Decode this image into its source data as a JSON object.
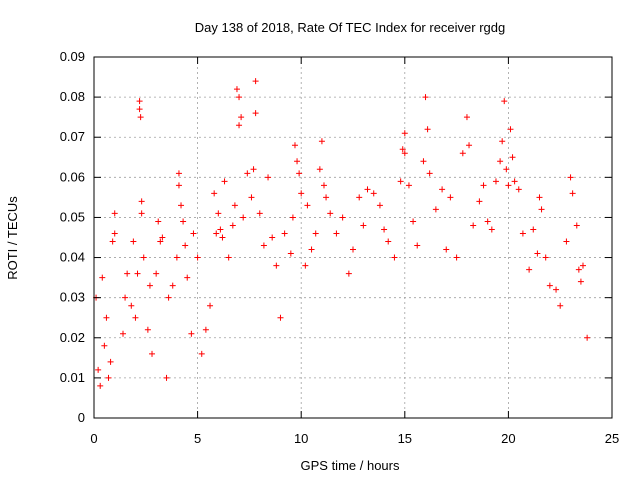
{
  "chart_data": {
    "type": "scatter",
    "title": "Day 138 of 2018, Rate Of TEC Index for receiver rgdg",
    "xlabel": "GPS time / hours",
    "ylabel": "ROTI / TECUs",
    "xlim": [
      0,
      25
    ],
    "ylim": [
      0,
      0.09
    ],
    "xticks": [
      "0",
      "5",
      "10",
      "15",
      "20",
      "25"
    ],
    "yticks": [
      "0",
      "0.01",
      "0.02",
      "0.03",
      "0.04",
      "0.05",
      "0.06",
      "0.07",
      "0.08",
      "0.09"
    ],
    "grid": true,
    "marker": "+",
    "series": [
      {
        "name": "ROTI",
        "color": "#ff0000",
        "points": [
          [
            0.1,
            0.03
          ],
          [
            0.2,
            0.012
          ],
          [
            0.3,
            0.008
          ],
          [
            0.4,
            0.035
          ],
          [
            0.5,
            0.018
          ],
          [
            0.6,
            0.025
          ],
          [
            0.7,
            0.01
          ],
          [
            0.8,
            0.014
          ],
          [
            0.9,
            0.044
          ],
          [
            1.0,
            0.046
          ],
          [
            1.0,
            0.051
          ],
          [
            1.4,
            0.021
          ],
          [
            1.5,
            0.03
          ],
          [
            1.6,
            0.036
          ],
          [
            1.8,
            0.028
          ],
          [
            1.9,
            0.044
          ],
          [
            2.0,
            0.025
          ],
          [
            2.1,
            0.036
          ],
          [
            2.2,
            0.079
          ],
          [
            2.2,
            0.077
          ],
          [
            2.25,
            0.075
          ],
          [
            2.3,
            0.054
          ],
          [
            2.3,
            0.051
          ],
          [
            2.4,
            0.04
          ],
          [
            2.6,
            0.022
          ],
          [
            2.7,
            0.033
          ],
          [
            2.8,
            0.016
          ],
          [
            3.0,
            0.036
          ],
          [
            3.1,
            0.049
          ],
          [
            3.2,
            0.044
          ],
          [
            3.3,
            0.045
          ],
          [
            3.5,
            0.01
          ],
          [
            3.6,
            0.03
          ],
          [
            3.8,
            0.033
          ],
          [
            4.0,
            0.04
          ],
          [
            4.1,
            0.061
          ],
          [
            4.1,
            0.058
          ],
          [
            4.2,
            0.053
          ],
          [
            4.3,
            0.049
          ],
          [
            4.4,
            0.043
          ],
          [
            4.5,
            0.035
          ],
          [
            4.7,
            0.021
          ],
          [
            4.8,
            0.046
          ],
          [
            5.0,
            0.04
          ],
          [
            5.2,
            0.016
          ],
          [
            5.4,
            0.022
          ],
          [
            5.6,
            0.028
          ],
          [
            5.8,
            0.056
          ],
          [
            5.9,
            0.046
          ],
          [
            6.0,
            0.051
          ],
          [
            6.1,
            0.047
          ],
          [
            6.2,
            0.045
          ],
          [
            6.3,
            0.059
          ],
          [
            6.5,
            0.04
          ],
          [
            6.7,
            0.048
          ],
          [
            6.8,
            0.053
          ],
          [
            6.9,
            0.082
          ],
          [
            7.0,
            0.08
          ],
          [
            7.0,
            0.073
          ],
          [
            7.1,
            0.075
          ],
          [
            7.2,
            0.05
          ],
          [
            7.4,
            0.061
          ],
          [
            7.6,
            0.055
          ],
          [
            7.7,
            0.062
          ],
          [
            7.8,
            0.084
          ],
          [
            7.8,
            0.076
          ],
          [
            8.0,
            0.051
          ],
          [
            8.2,
            0.043
          ],
          [
            8.4,
            0.06
          ],
          [
            8.6,
            0.045
          ],
          [
            8.8,
            0.038
          ],
          [
            9.0,
            0.025
          ],
          [
            9.2,
            0.046
          ],
          [
            9.5,
            0.041
          ],
          [
            9.6,
            0.05
          ],
          [
            9.7,
            0.068
          ],
          [
            9.8,
            0.064
          ],
          [
            9.9,
            0.061
          ],
          [
            10.0,
            0.056
          ],
          [
            10.2,
            0.038
          ],
          [
            10.3,
            0.053
          ],
          [
            10.5,
            0.042
          ],
          [
            10.7,
            0.046
          ],
          [
            10.9,
            0.062
          ],
          [
            11.0,
            0.069
          ],
          [
            11.1,
            0.058
          ],
          [
            11.2,
            0.055
          ],
          [
            11.4,
            0.051
          ],
          [
            11.7,
            0.046
          ],
          [
            12.0,
            0.05
          ],
          [
            12.3,
            0.036
          ],
          [
            12.5,
            0.042
          ],
          [
            12.8,
            0.055
          ],
          [
            13.0,
            0.048
          ],
          [
            13.2,
            0.057
          ],
          [
            13.5,
            0.056
          ],
          [
            13.8,
            0.053
          ],
          [
            14.0,
            0.047
          ],
          [
            14.2,
            0.044
          ],
          [
            14.5,
            0.04
          ],
          [
            14.8,
            0.059
          ],
          [
            14.9,
            0.067
          ],
          [
            15.0,
            0.071
          ],
          [
            15.0,
            0.066
          ],
          [
            15.2,
            0.058
          ],
          [
            15.4,
            0.049
          ],
          [
            15.6,
            0.043
          ],
          [
            15.9,
            0.064
          ],
          [
            16.0,
            0.08
          ],
          [
            16.1,
            0.072
          ],
          [
            16.2,
            0.061
          ],
          [
            16.5,
            0.052
          ],
          [
            16.8,
            0.057
          ],
          [
            17.0,
            0.042
          ],
          [
            17.2,
            0.055
          ],
          [
            17.5,
            0.04
          ],
          [
            17.8,
            0.066
          ],
          [
            18.0,
            0.075
          ],
          [
            18.1,
            0.068
          ],
          [
            18.3,
            0.048
          ],
          [
            18.6,
            0.054
          ],
          [
            18.8,
            0.058
          ],
          [
            19.0,
            0.049
          ],
          [
            19.2,
            0.047
          ],
          [
            19.4,
            0.059
          ],
          [
            19.6,
            0.064
          ],
          [
            19.7,
            0.069
          ],
          [
            19.8,
            0.079
          ],
          [
            19.9,
            0.062
          ],
          [
            20.0,
            0.058
          ],
          [
            20.1,
            0.072
          ],
          [
            20.2,
            0.065
          ],
          [
            20.3,
            0.059
          ],
          [
            20.5,
            0.057
          ],
          [
            20.7,
            0.046
          ],
          [
            21.0,
            0.037
          ],
          [
            21.2,
            0.047
          ],
          [
            21.4,
            0.041
          ],
          [
            21.5,
            0.055
          ],
          [
            21.6,
            0.052
          ],
          [
            21.8,
            0.04
          ],
          [
            22.0,
            0.033
          ],
          [
            22.3,
            0.032
          ],
          [
            22.5,
            0.028
          ],
          [
            22.8,
            0.044
          ],
          [
            23.0,
            0.06
          ],
          [
            23.1,
            0.056
          ],
          [
            23.3,
            0.048
          ],
          [
            23.4,
            0.037
          ],
          [
            23.5,
            0.034
          ],
          [
            23.6,
            0.038
          ],
          [
            23.8,
            0.02
          ]
        ]
      }
    ]
  }
}
